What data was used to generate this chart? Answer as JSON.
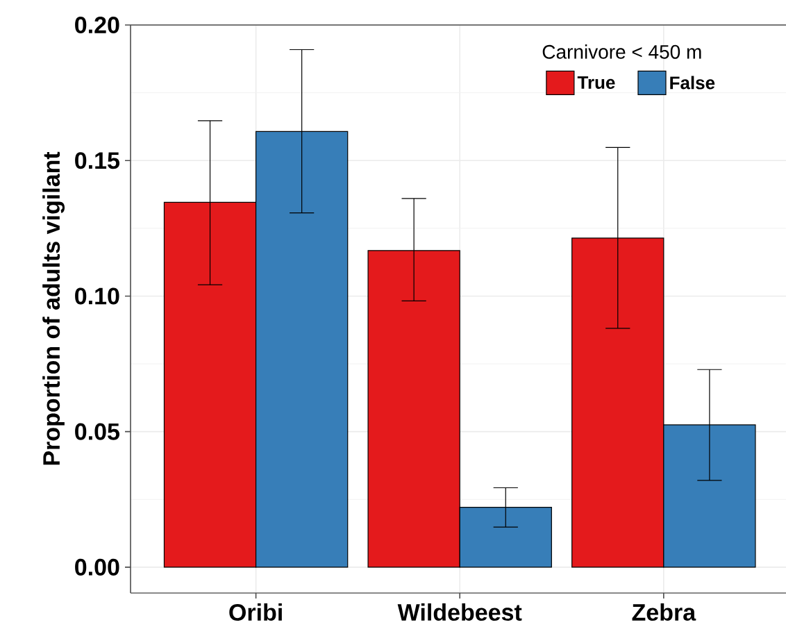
{
  "chart_data": {
    "type": "bar",
    "ylabel": "Proportion of adults vigilant",
    "legend_title": "Carnivore < 450 m",
    "categories": [
      "Oribi",
      "Wildebeest",
      "Zebra"
    ],
    "series": [
      {
        "name": "True",
        "color": "#e41a1c",
        "values": [
          0.1346,
          0.1168,
          0.1214
        ],
        "errors": [
          [
            0.1042,
            0.1647
          ],
          [
            0.0982,
            0.136
          ],
          [
            0.0881,
            0.1548
          ]
        ]
      },
      {
        "name": "False",
        "color": "#377eb8",
        "values": [
          0.1607,
          0.0221,
          0.0525
        ],
        "errors": [
          [
            0.1307,
            0.1909
          ],
          [
            0.0148,
            0.0293
          ],
          [
            0.032,
            0.0729
          ]
        ]
      }
    ],
    "ylim": [
      -0.0095,
      0.2
    ],
    "yticks": [
      {
        "value": 0,
        "label": "0.00"
      },
      {
        "value": 0.05,
        "label": "0.05"
      },
      {
        "value": 0.1,
        "label": "0.10"
      },
      {
        "value": 0.15,
        "label": "0.15"
      },
      {
        "value": 0.2,
        "label": "0.20"
      }
    ],
    "grid": true,
    "legend": "top right"
  }
}
